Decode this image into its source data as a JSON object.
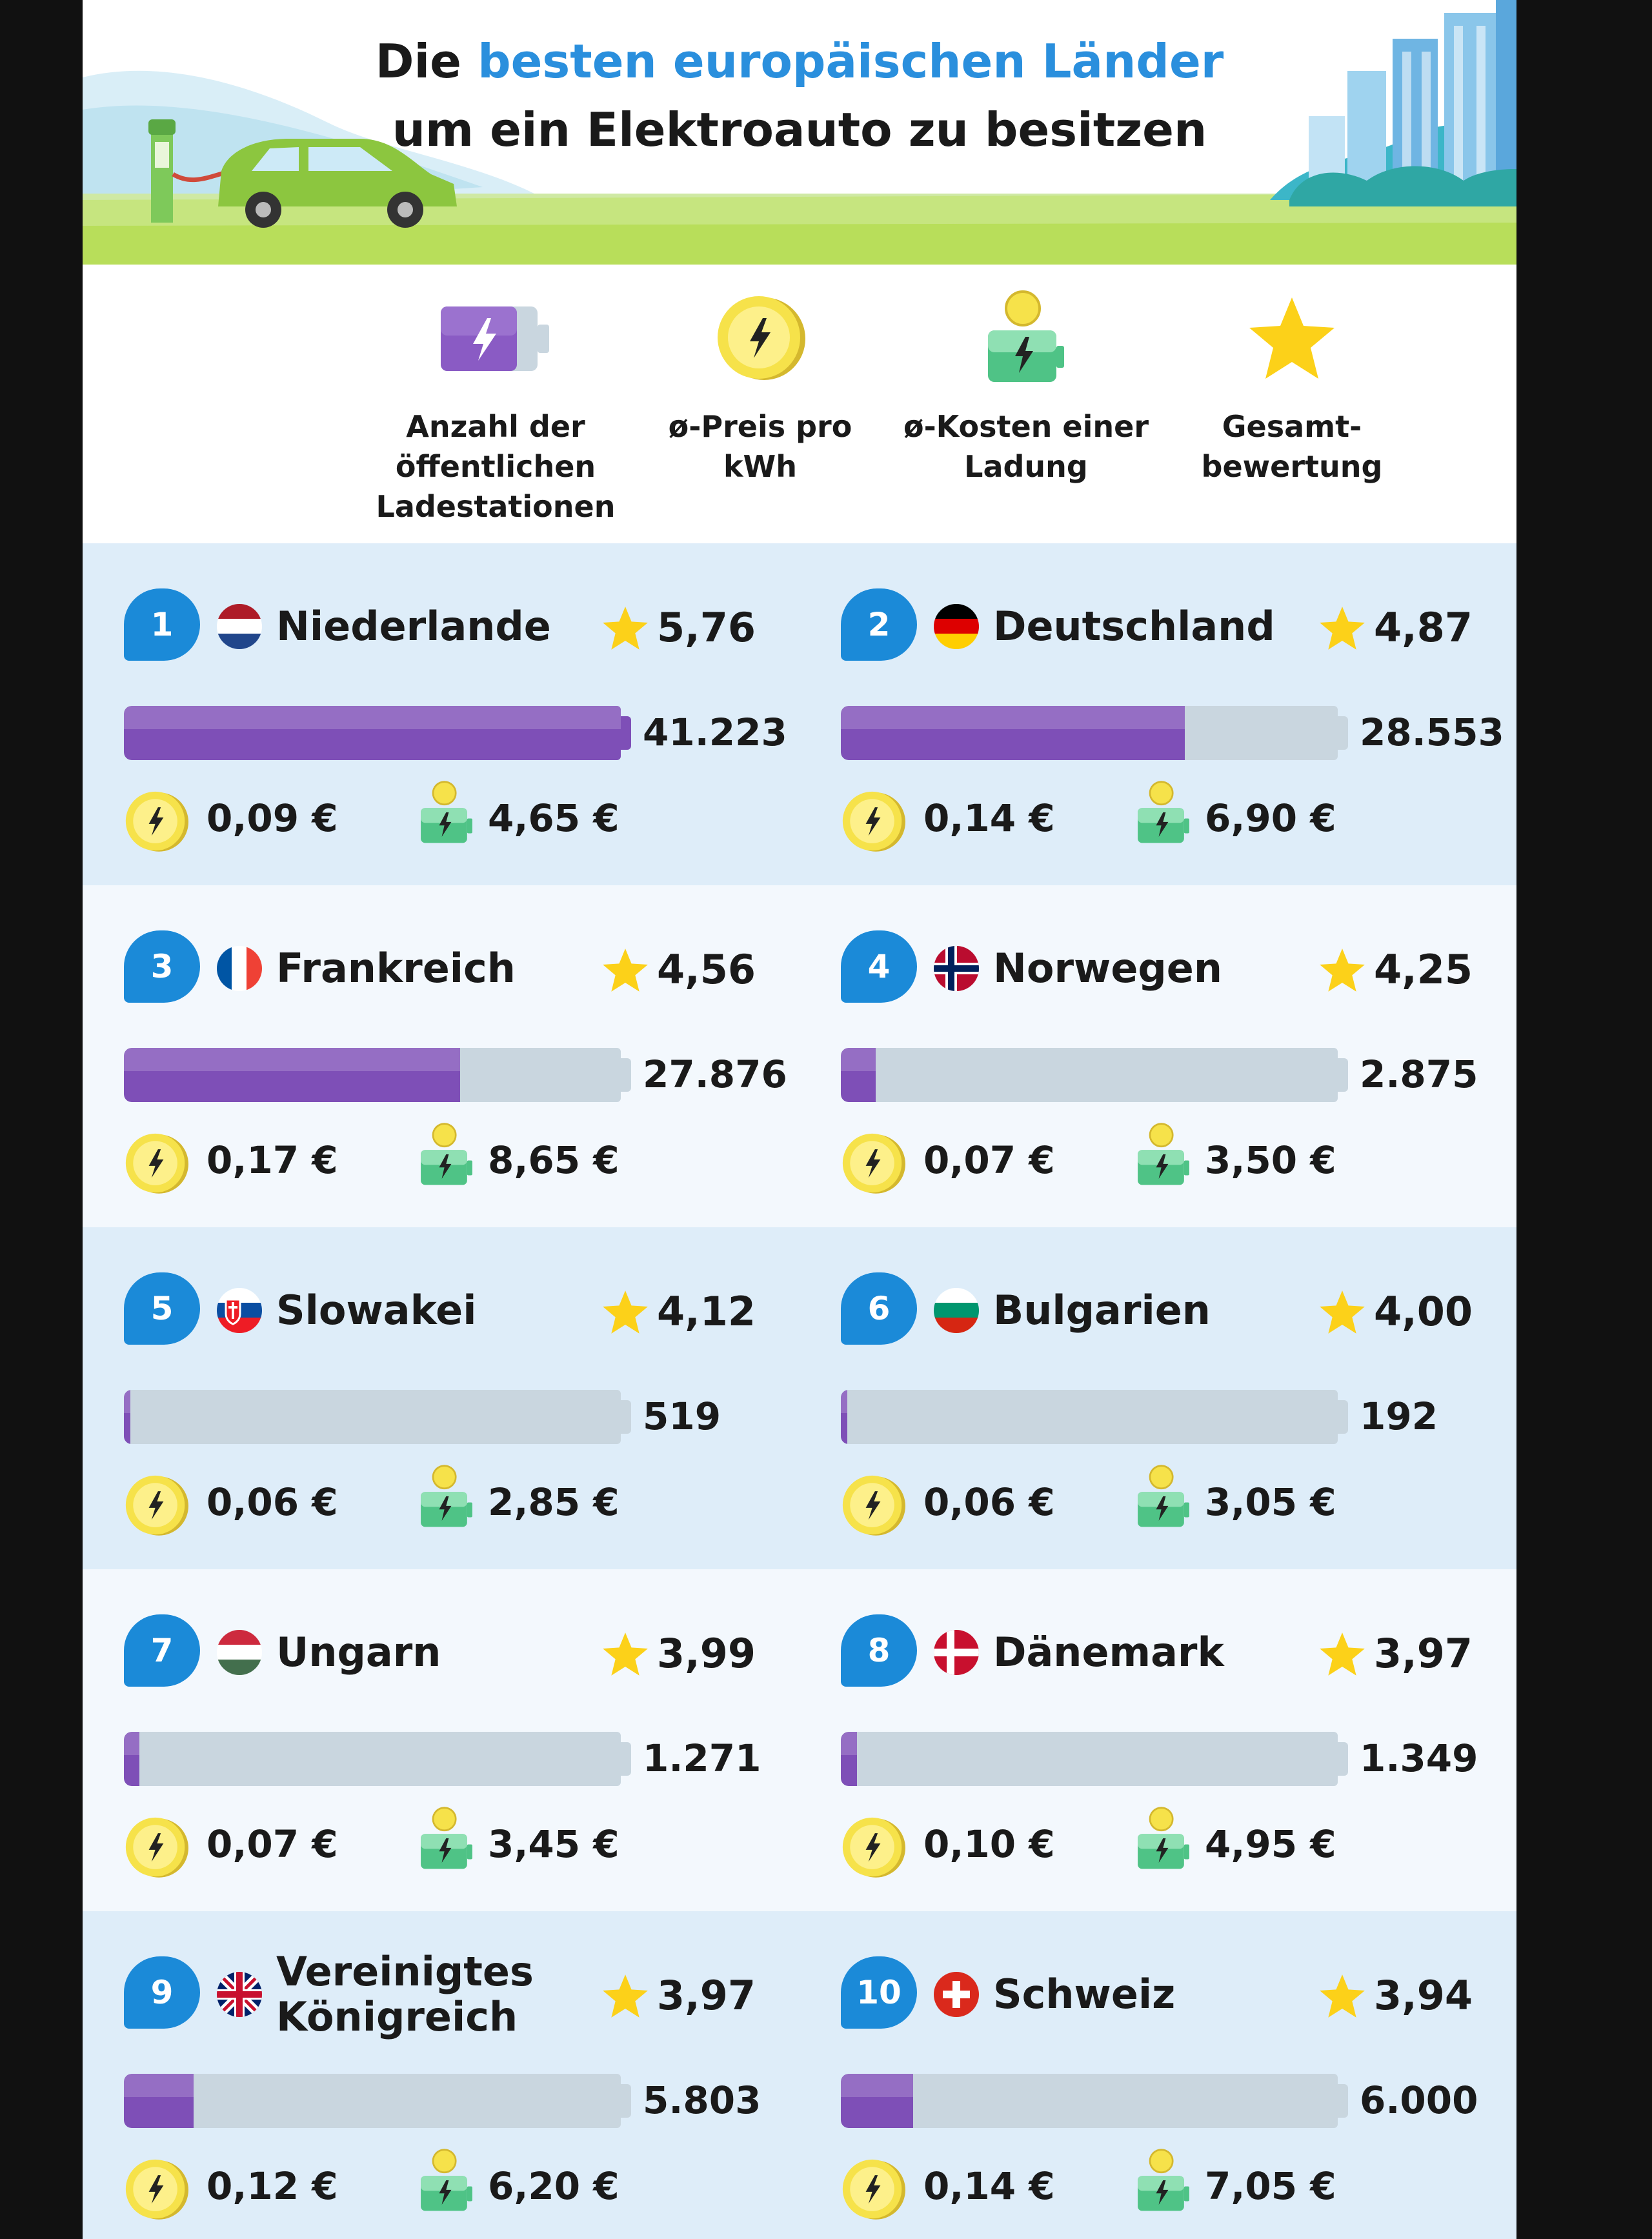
{
  "title_part1": "Die ",
  "title_accent": "besten europäischen Länder",
  "title_line2": "um ein Elektroauto zu besitzen",
  "legend": {
    "stations": "Anzahl der\nöffentlichen\nLadestationen",
    "price": "ø-Preis pro\nkWh",
    "charge": "ø-Kosten einer\nLadung",
    "rating": "Gesamt-\nbewertung"
  },
  "colors": {
    "badge": "#1b8ad8",
    "bar_fill": "#7e4fb7",
    "bar_track": "#c9d6df",
    "accent_text": "#2a8fdd",
    "star": "#fcd119",
    "coin": "#f6e24a"
  },
  "chart_data": {
    "type": "table",
    "max_stations": 41223,
    "rows": [
      {
        "rank": "1",
        "country": "Niederlande",
        "flag": "nl",
        "score": "5,76",
        "stations": 41223,
        "stations_label": "41.223",
        "price": "0,09 €",
        "charge": "4,65 €"
      },
      {
        "rank": "2",
        "country": "Deutschland",
        "flag": "de",
        "score": "4,87",
        "stations": 28553,
        "stations_label": "28.553",
        "price": "0,14 €",
        "charge": "6,90 €"
      },
      {
        "rank": "3",
        "country": "Frankreich",
        "flag": "fr",
        "score": "4,56",
        "stations": 27876,
        "stations_label": "27.876",
        "price": "0,17 €",
        "charge": "8,65 €"
      },
      {
        "rank": "4",
        "country": "Norwegen",
        "flag": "no",
        "score": "4,25",
        "stations": 2875,
        "stations_label": "2.875",
        "price": "0,07 €",
        "charge": "3,50 €"
      },
      {
        "rank": "5",
        "country": "Slowakei",
        "flag": "sk",
        "score": "4,12",
        "stations": 519,
        "stations_label": "519",
        "price": "0,06 €",
        "charge": "2,85 €"
      },
      {
        "rank": "6",
        "country": "Bulgarien",
        "flag": "bg",
        "score": "4,00",
        "stations": 192,
        "stations_label": "192",
        "price": "0,06 €",
        "charge": "3,05 €"
      },
      {
        "rank": "7",
        "country": "Ungarn",
        "flag": "hu",
        "score": "3,99",
        "stations": 1271,
        "stations_label": "1.271",
        "price": "0,07 €",
        "charge": "3,45 €"
      },
      {
        "rank": "8",
        "country": "Dänemark",
        "flag": "dk",
        "score": "3,97",
        "stations": 1349,
        "stations_label": "1.349",
        "price": "0,10 €",
        "charge": "4,95 €"
      },
      {
        "rank": "9",
        "country": "Vereinigtes\nKönigreich",
        "flag": "gb",
        "score": "3,97",
        "stations": 5803,
        "stations_label": "5.803",
        "price": "0,12 €",
        "charge": "6,20 €"
      },
      {
        "rank": "10",
        "country": "Schweiz",
        "flag": "ch",
        "score": "3,94",
        "stations": 6000,
        "stations_label": "6.000",
        "price": "0,14 €",
        "charge": "7,05 €"
      }
    ]
  }
}
